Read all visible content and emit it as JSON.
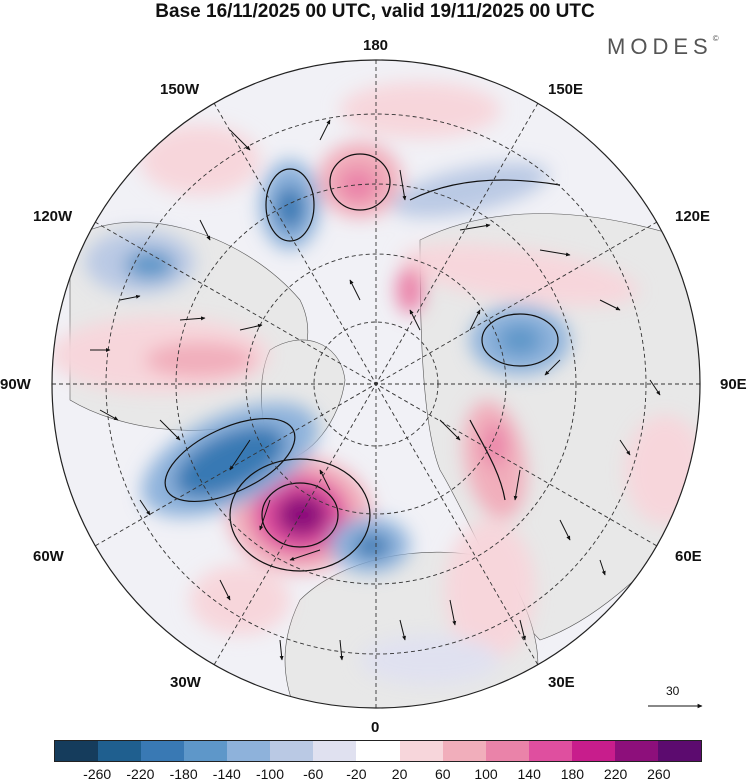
{
  "title": "Base 16/11/2025 00 UTC, valid 19/11/2025 00 UTC",
  "brand": "MODES",
  "brand_mark": "©",
  "map_labels": {
    "top": "180",
    "bottom": "0",
    "left": "90W",
    "right": "90E",
    "lon_150w": "150W",
    "lon_120w": "120W",
    "lon_60w": "60W",
    "lon_30w": "30W",
    "lon_150e": "150E",
    "lon_120e": "120E",
    "lon_60e": "60E",
    "lon_30e": "30E"
  },
  "vector_scale": {
    "label": "30",
    "icon": "arrow-right-icon"
  },
  "colorbar": {
    "colors": [
      "#153c5c",
      "#1f5f8f",
      "#3979b4",
      "#5e97c9",
      "#8eb2db",
      "#bac9e4",
      "#e0e1f0",
      "#ffffff",
      "#f7d6db",
      "#f1aebb",
      "#ea83a9",
      "#df4f9f",
      "#c81d8c",
      "#8d0f7b",
      "#5c0b6f"
    ],
    "ticks": [
      "-260",
      "-220",
      "-180",
      "-140",
      "-100",
      "-60",
      "-20",
      "20",
      "60",
      "100",
      "140",
      "180",
      "220",
      "260"
    ]
  },
  "colors": {
    "land": "#ececec",
    "grid": "#333333",
    "frame": "#222222"
  }
}
